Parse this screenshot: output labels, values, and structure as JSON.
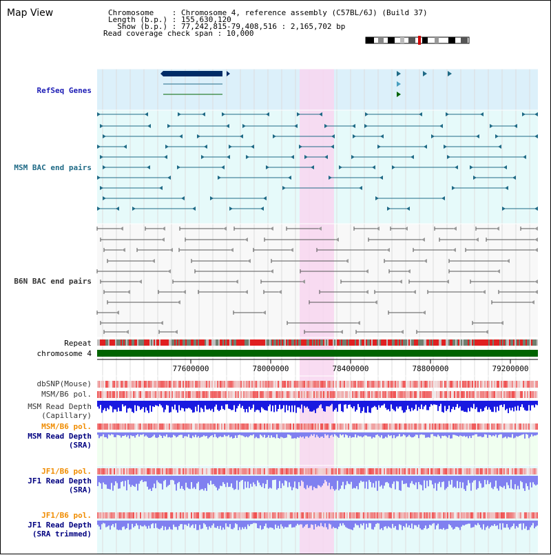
{
  "view_title": "Map View",
  "info": {
    "chromosome_line": "Chromosome    : Chromosome 4, reference assembly (C57BL/6J) (Build 37)",
    "length_line": "Length (b.p.) : 155,630,120",
    "show_line": "  Show (b.p.) : 77,242,815-79,408,516 : 2,165,702 bp",
    "coverage_line": "Read coverage check span : 10,000"
  },
  "tracks": {
    "refseq": "RefSeq Genes",
    "msm_bac": "MSM BAC end pairs",
    "b6n_bac": "B6N BAC end pairs",
    "repeat": "Repeat",
    "chromosome": "chromosome 4",
    "dbsnp": "dbSNP(Mouse)",
    "msm_b6_pol_1": "MSM/B6 pol.",
    "msm_depth_cap_1": "MSM Read Depth",
    "msm_depth_cap_2": "(Capillary)",
    "msm_b6_pol_2": "MSM/B6 pol.",
    "msm_depth_sra_1": "MSM Read Depth",
    "msm_depth_sra_2": "(SRA)",
    "jf1_b6_pol_1": "JF1/B6 pol.",
    "jf1_depth_sra_1": "JF1 Read Depth",
    "jf1_depth_sra_2": "(SRA)",
    "jf1_b6_pol_2": "JF1/B6 pol.",
    "jf1_depth_trim_1": "JF1 Read Depth",
    "jf1_depth_trim_2": "(SRA trimmed)"
  },
  "axis_ticks": [
    "77600000",
    "78000000",
    "78400000",
    "78800000",
    "79200000"
  ],
  "colors": {
    "highlight": "#f8d6f0",
    "refseq_bg": "#dcf0fa",
    "msm_bg": "#e6fafa",
    "gene_dark": "#002b66",
    "gene_teal": "#1f6a86",
    "bac_grey": "#555555",
    "chromosome_green": "#006400",
    "depth_blue": "#1a1ae0",
    "depth_lavender": "#8080f0"
  }
}
